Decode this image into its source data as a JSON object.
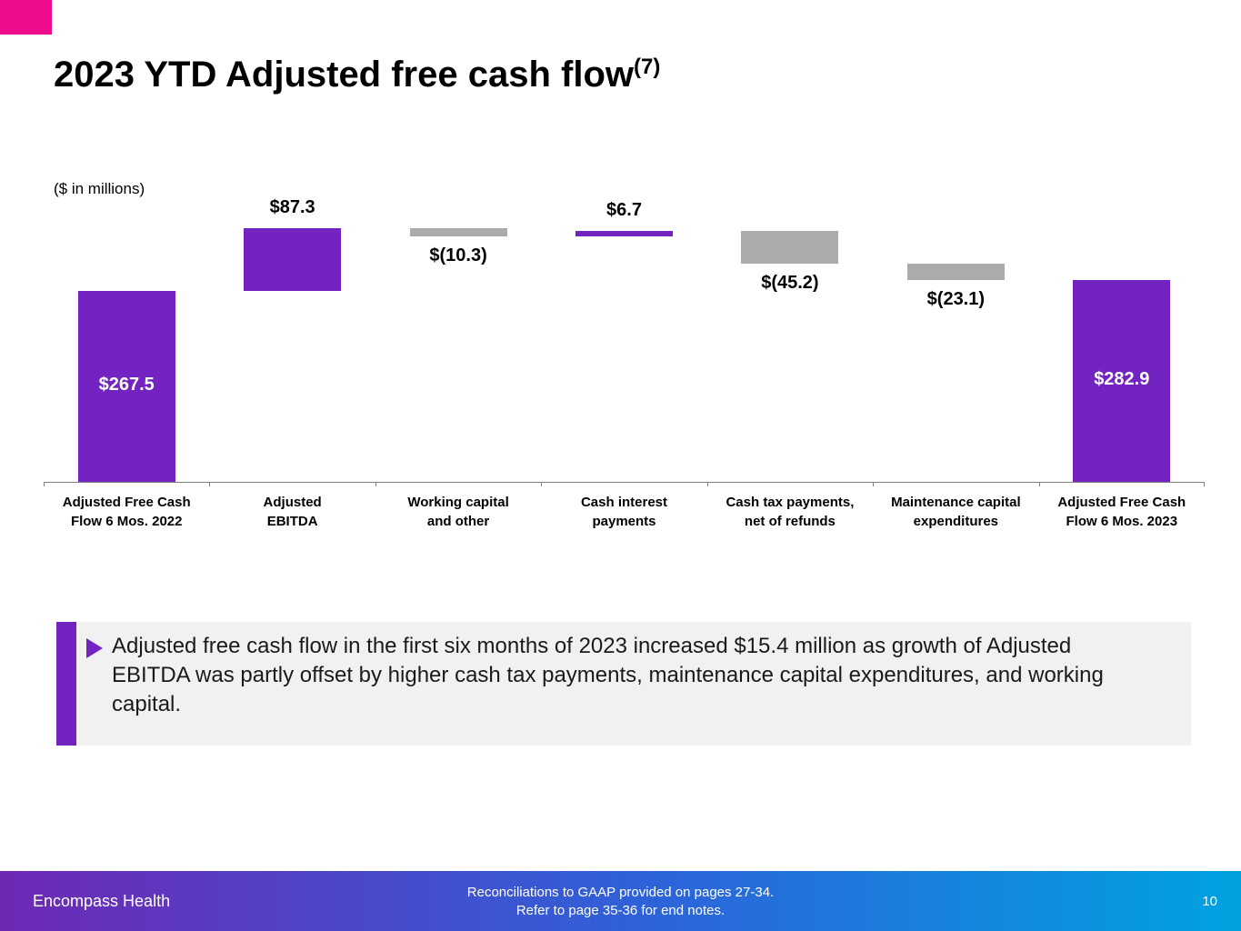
{
  "slide": {
    "title": "2023 YTD Adjusted free cash flow",
    "title_superscript": "(7)",
    "units_label": "($ in millions)"
  },
  "chart_data": {
    "type": "bar",
    "subtype": "waterfall",
    "title": "2023 YTD Adjusted free cash flow",
    "units": "$ in millions",
    "grid": false,
    "legend": false,
    "baseline": 0,
    "value_range": [
      0,
      354.8
    ],
    "items": [
      {
        "category": "Adjusted Free Cash Flow 6 Mos. 2022",
        "label_lines": [
          "Adjusted Free Cash",
          "Flow 6 Mos. 2022"
        ],
        "value": 267.5,
        "display": "$267.5",
        "kind": "total",
        "color": "purple",
        "label_position": "inside"
      },
      {
        "category": "Adjusted EBITDA",
        "label_lines": [
          "Adjusted",
          "EBITDA"
        ],
        "value": 87.3,
        "display": "$87.3",
        "kind": "increase",
        "color": "purple",
        "label_position": "above"
      },
      {
        "category": "Working capital and other",
        "label_lines": [
          "Working capital",
          "and other"
        ],
        "value": -10.3,
        "display": "$(10.3)",
        "kind": "decrease",
        "color": "gray",
        "label_position": "below"
      },
      {
        "category": "Cash interest payments",
        "label_lines": [
          "Cash interest",
          "payments"
        ],
        "value": 6.7,
        "display": "$6.7",
        "kind": "increase",
        "color": "purple",
        "label_position": "above"
      },
      {
        "category": "Cash tax payments, net of refunds",
        "label_lines": [
          "Cash tax payments,",
          "net of refunds"
        ],
        "value": -45.2,
        "display": "$(45.2)",
        "kind": "decrease",
        "color": "gray",
        "label_position": "below"
      },
      {
        "category": "Maintenance capital expenditures",
        "label_lines": [
          "Maintenance capital",
          "expenditures"
        ],
        "value": -23.1,
        "display": "$(23.1)",
        "kind": "decrease",
        "color": "gray",
        "label_position": "below"
      },
      {
        "category": "Adjusted Free Cash Flow 6 Mos. 2023",
        "label_lines": [
          "Adjusted Free Cash",
          "Flow 6 Mos. 2023"
        ],
        "value": 282.9,
        "display": "$282.9",
        "kind": "total",
        "color": "purple",
        "label_position": "inside"
      }
    ]
  },
  "callout": {
    "text": "Adjusted free cash flow in the first six months of 2023 increased $15.4 million as growth of Adjusted EBITDA was partly offset by higher cash tax payments, maintenance capital expenditures, and working capital."
  },
  "footer": {
    "company": "Encompass Health",
    "note_line1": "Reconciliations to GAAP provided on pages 27-34.",
    "note_line2": "Refer to page 35-36 for end notes.",
    "page_number": "10"
  },
  "colors": {
    "accent_purple": "#7323C1",
    "bar_gray": "#ABABAB",
    "logo_pink": "#EC0C8C",
    "callout_bg": "#F1F1F1",
    "footer_gradient_start": "#6E28B4",
    "footer_gradient_mid": "#2E62D9",
    "footer_gradient_end": "#00A3E0",
    "text_black": "#000000",
    "axis_gray": "#808080"
  }
}
